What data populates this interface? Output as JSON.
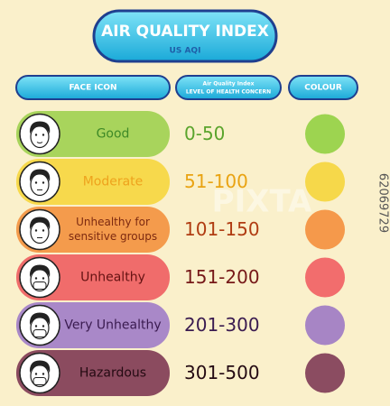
{
  "header": {
    "title": "AIR QUALITY INDEX",
    "subtitle": "US AQI"
  },
  "columns": {
    "face": "FACE ICON",
    "level": [
      "Air Quality Index",
      "LEVEL OF HEALTH CONCERN"
    ],
    "colour": "COLOUR"
  },
  "rows": [
    {
      "label": [
        "Good"
      ],
      "range": "0-50",
      "pill": "#a8d45c",
      "text": "#3f8a27",
      "range_color": "#5aa42c",
      "swatch": "#9dd450"
    },
    {
      "label": [
        "Moderate"
      ],
      "range": "51-100",
      "pill": "#f7d94c",
      "text": "#eea21d",
      "range_color": "#e9a312",
      "swatch": "#f6d84a"
    },
    {
      "label": [
        "Unhealthy for",
        "sensitive groups"
      ],
      "range": "101-150",
      "pill": "#f49b4c",
      "text": "#7d2a10",
      "range_color": "#b03c12",
      "swatch": "#f5994b"
    },
    {
      "label": [
        "Unhealthy"
      ],
      "range": "151-200",
      "pill": "#f06c6b",
      "text": "#641212",
      "range_color": "#761818",
      "swatch": "#f26d6d"
    },
    {
      "label": [
        "Very Unhealthy"
      ],
      "range": "201-300",
      "pill": "#a988c8",
      "text": "#3a1b50",
      "range_color": "#3a1b50",
      "swatch": "#a785c5"
    },
    {
      "label": [
        "Hazardous"
      ],
      "range": "301-500",
      "pill": "#8b4b5f",
      "text": "#240a12",
      "range_color": "#240a12",
      "swatch": "#8b4c61"
    }
  ],
  "watermark": {
    "brand": "PIXTA",
    "id": "62069729"
  }
}
